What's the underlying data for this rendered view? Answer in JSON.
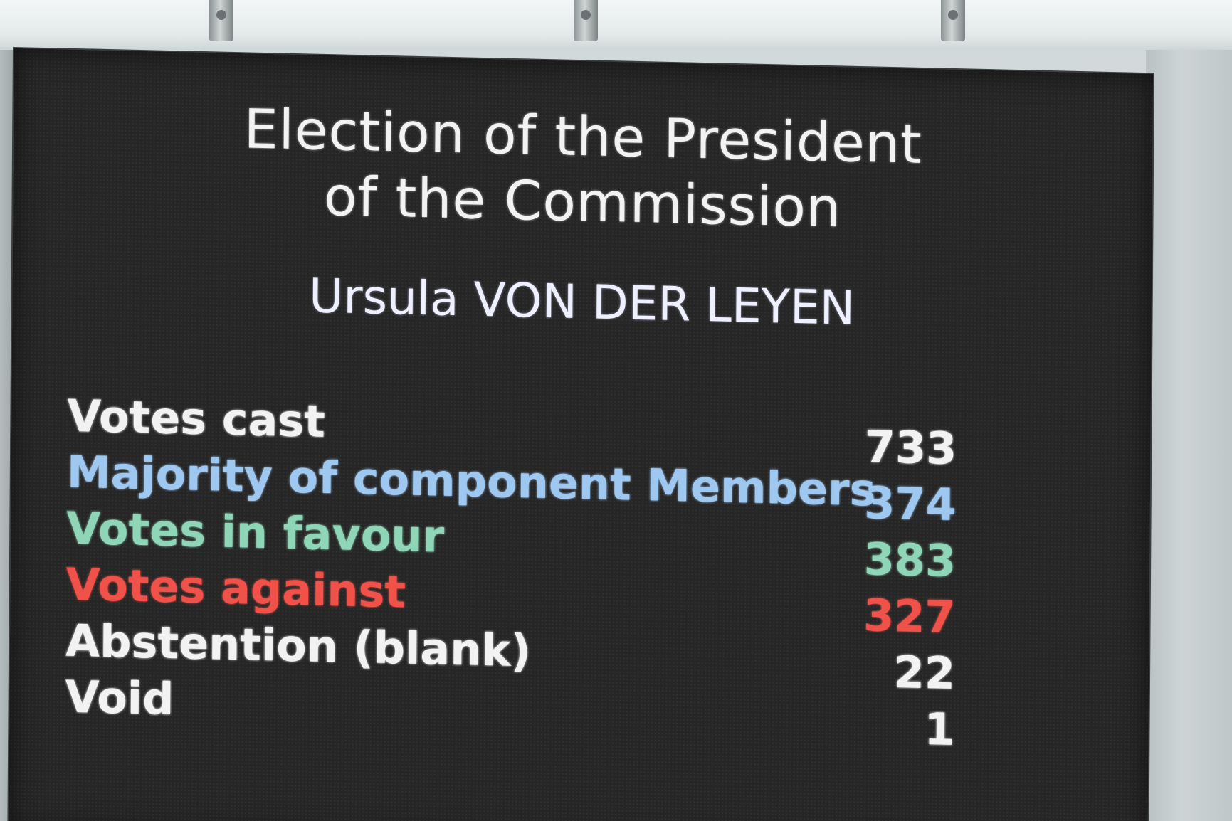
{
  "board": {
    "title_line1": "Election of the President",
    "title_line2": "of the Commission",
    "candidate": "Ursula VON DER LEYEN"
  },
  "results": [
    {
      "label": "Votes cast",
      "value": "733",
      "color": "#f2f2f2"
    },
    {
      "label": "Majority of component Members",
      "value": "374",
      "color": "#9fc8f0"
    },
    {
      "label": "Votes in favour",
      "value": "383",
      "color": "#8fd6b8"
    },
    {
      "label": "Votes against",
      "value": "327",
      "color": "#f0524a"
    },
    {
      "label": "Abstention (blank)",
      "value": "22",
      "color": "#f2f2f2"
    },
    {
      "label": "Void",
      "value": "1",
      "color": "#f2f2f2"
    }
  ]
}
